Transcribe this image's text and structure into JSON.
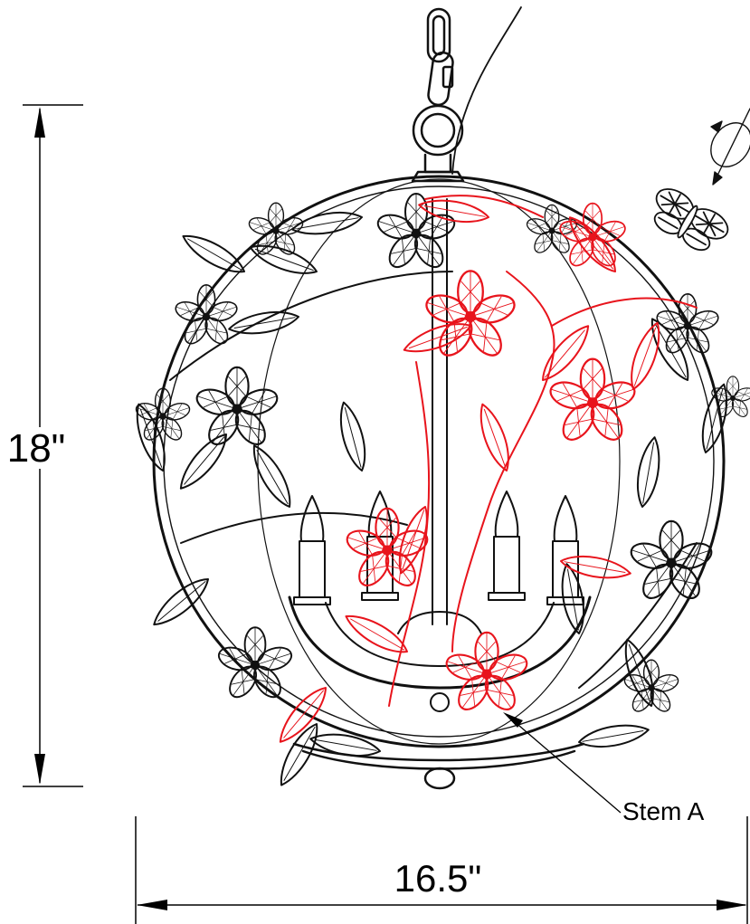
{
  "dimensions": {
    "height_label": "18\"",
    "width_label": "16.5\""
  },
  "callouts": {
    "stem_label": "Stem A"
  },
  "colors": {
    "line": "#111111",
    "highlight": "#e8141c",
    "background": "#ffffff"
  },
  "icons": {
    "rotate": "rotate-arrow-icon",
    "butterfly": "butterfly-icon"
  }
}
